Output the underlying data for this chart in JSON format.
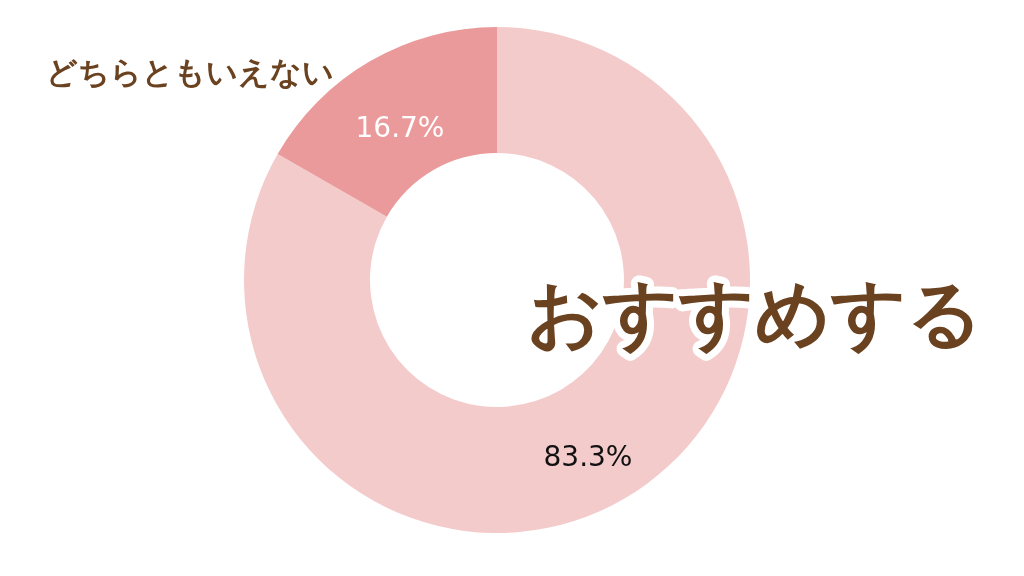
{
  "chart_data": {
    "type": "donut",
    "categories": [
      "おすすめする",
      "どちらともいえない"
    ],
    "values": [
      83.3,
      16.7
    ],
    "colors": [
      "#f4cbcb",
      "#ea9a9a"
    ],
    "value_labels": [
      "83.3%",
      "16.7%"
    ]
  }
}
